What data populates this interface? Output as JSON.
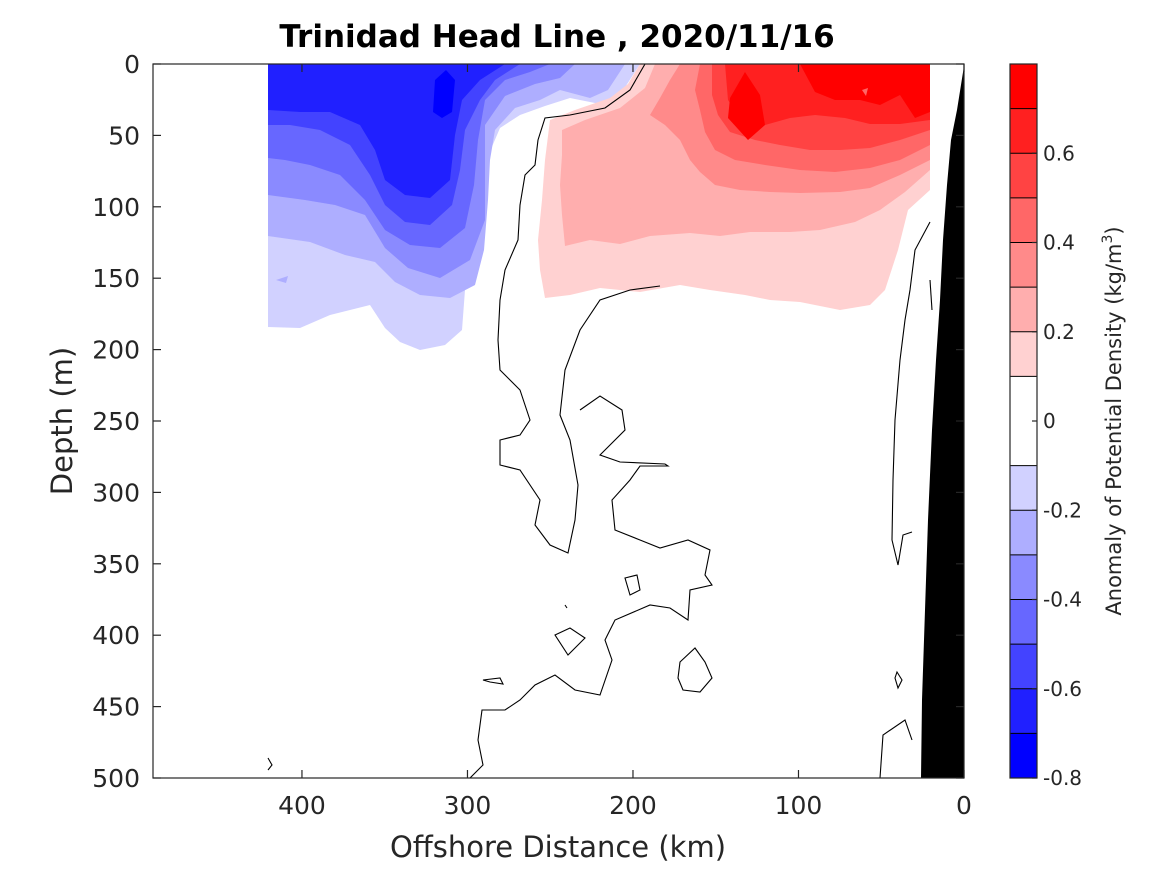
{
  "chart_data": {
    "type": "heatmap",
    "title": "Trinidad Head Line , 2020/11/16",
    "xlabel": "Offshore Distance (km)",
    "ylabel": "Depth (m)",
    "xlim": [
      490,
      0
    ],
    "ylim": [
      500,
      0
    ],
    "x_reversed": true,
    "y_reversed": true,
    "xticks": [
      400,
      300,
      200,
      100,
      0
    ],
    "yticks": [
      0,
      50,
      100,
      150,
      200,
      250,
      300,
      350,
      400,
      450,
      500
    ],
    "colorbar": {
      "label_main": "Anomaly of Potential Density (kg/m",
      "label_sup": "3",
      "label_end": ")",
      "range": [
        -0.8,
        0.8
      ],
      "levels": [
        -0.8,
        -0.7,
        -0.6,
        -0.5,
        -0.4,
        -0.3,
        -0.2,
        -0.1,
        0.1,
        0.2,
        0.3,
        0.4,
        0.5,
        0.6,
        0.7,
        0.8
      ],
      "ticks": [
        0.6,
        0.4,
        0.2,
        0,
        -0.2,
        -0.4,
        -0.6,
        -0.8
      ],
      "tick_labels": [
        "0.6",
        "0.4",
        "0.2",
        "0",
        "-0.2",
        "-0.4",
        "-0.6",
        "-0.8"
      ],
      "colors": [
        "#0000ff",
        "#2020ff",
        "#4343ff",
        "#6767ff",
        "#8a8aff",
        "#aeaeff",
        "#d1d1ff",
        "#ffffff",
        "#ffd1d1",
        "#ffaeae",
        "#ff8a8a",
        "#ff6767",
        "#ff4343",
        "#ff2020",
        "#ff0000"
      ]
    },
    "data_coverage_km": [
      420,
      20
    ],
    "bathymetry_color": "#000000"
  }
}
